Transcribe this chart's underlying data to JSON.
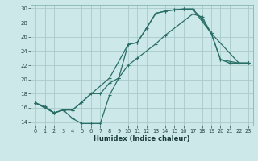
{
  "xlabel": "Humidex (Indice chaleur)",
  "bg_color": "#cce8e8",
  "grid_color": "#aacaca",
  "line_color": "#2a6e68",
  "xlim": [
    -0.5,
    23.5
  ],
  "ylim": [
    13.5,
    30.5
  ],
  "xticks": [
    0,
    1,
    2,
    3,
    4,
    5,
    6,
    7,
    8,
    9,
    10,
    11,
    12,
    13,
    14,
    15,
    16,
    17,
    18,
    19,
    20,
    21,
    22,
    23
  ],
  "yticks": [
    14,
    16,
    18,
    20,
    22,
    24,
    26,
    28,
    30
  ],
  "line1_x": [
    0,
    1,
    2,
    3,
    4,
    5,
    6,
    7,
    8,
    9,
    10,
    11,
    12,
    13,
    14,
    15,
    16,
    17,
    18,
    19,
    20,
    21,
    22,
    23
  ],
  "line1_y": [
    16.7,
    16.2,
    15.3,
    15.7,
    14.5,
    13.8,
    13.8,
    13.8,
    17.8,
    20.2,
    24.9,
    25.2,
    27.2,
    29.3,
    29.6,
    29.8,
    29.9,
    29.9,
    28.5,
    26.5,
    22.8,
    22.3,
    22.3,
    22.3
  ],
  "line2_x": [
    0,
    2,
    3,
    4,
    8,
    10,
    11,
    13,
    14,
    15,
    16,
    17,
    19,
    20,
    22,
    23
  ],
  "line2_y": [
    16.7,
    15.3,
    15.7,
    15.7,
    20.2,
    24.9,
    25.2,
    29.3,
    29.6,
    29.8,
    29.9,
    29.9,
    26.5,
    22.8,
    22.3,
    22.3
  ],
  "line3_x": [
    0,
    2,
    3,
    4,
    5,
    6,
    7,
    8,
    9,
    10,
    11,
    13,
    14,
    17,
    18,
    19,
    22,
    23
  ],
  "line3_y": [
    16.7,
    15.3,
    15.7,
    15.7,
    16.8,
    18.0,
    18.0,
    19.5,
    20.2,
    22.0,
    23.0,
    25.0,
    26.2,
    29.2,
    28.8,
    26.5,
    22.3,
    22.3
  ]
}
